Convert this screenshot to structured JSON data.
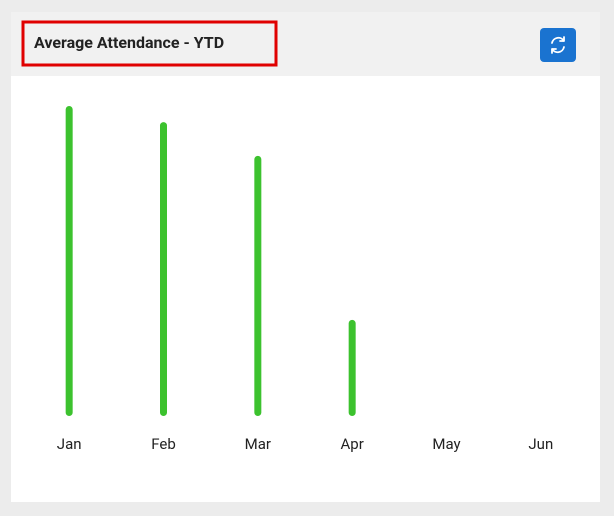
{
  "chart_data": {
    "type": "bar",
    "title": "Average Attendance - YTD",
    "categories": [
      "Jan",
      "Feb",
      "Mar",
      "Apr",
      "May",
      "Jun"
    ],
    "values": [
      100,
      94.8,
      83.9,
      31,
      null,
      null
    ],
    "color": "#3cc22e",
    "ylim": [
      0,
      100
    ]
  }
}
